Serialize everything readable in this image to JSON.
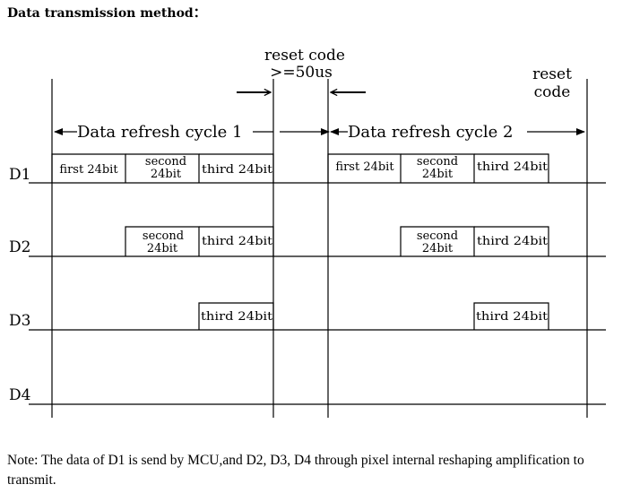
{
  "header": {
    "title": "Data transmission method："
  },
  "labels": {
    "reset_code_1": [
      "reset code",
      ">=50us"
    ],
    "reset_code_2": [
      "reset",
      "code"
    ],
    "cycle_1": "Data refresh cycle 1",
    "cycle_2": "Data refresh cycle 2"
  },
  "lines": [
    "D1",
    "D2",
    "D3",
    "D4"
  ],
  "blocks": {
    "first": [
      "first 24bit"
    ],
    "second": [
      "second",
      "24bit"
    ],
    "third": [
      "third 24bit"
    ]
  },
  "footer": {
    "note": "Note: The data of D1 is send by MCU,and D2, D3, D4 through pixel internal reshaping amplification to transmit."
  }
}
